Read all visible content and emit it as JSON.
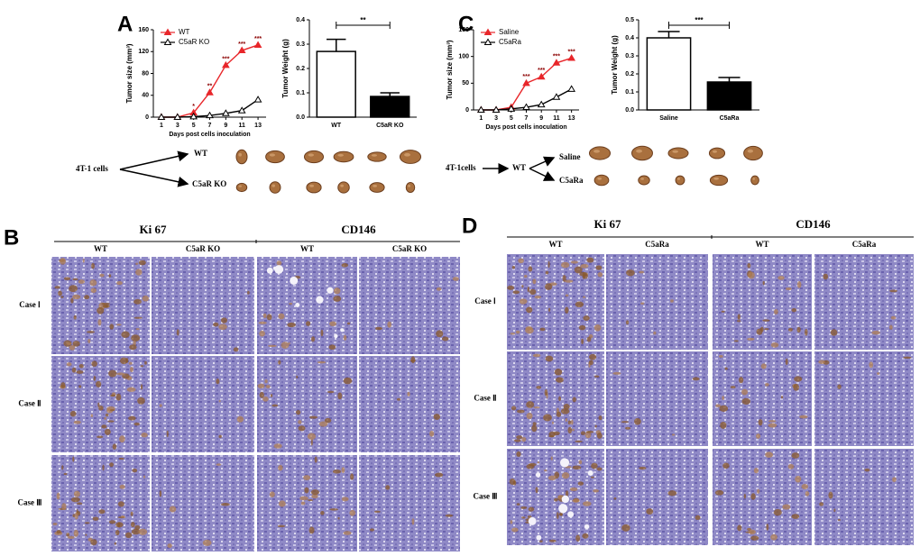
{
  "panels": {
    "a": "A",
    "b": "B",
    "c": "C",
    "d": "D"
  },
  "chart_data": [
    {
      "type": "line",
      "x": [
        1,
        3,
        5,
        7,
        9,
        11,
        13
      ],
      "xlim": [
        0,
        14
      ],
      "xticks": [
        1,
        3,
        5,
        7,
        9,
        11,
        13
      ],
      "ylim": [
        0,
        160
      ],
      "yticks": [
        0,
        40,
        80,
        120,
        160
      ],
      "y_label": "Tumor size (mm³)",
      "x_label": "Days post cells inoculation",
      "series": [
        {
          "name": "WT",
          "color": "#e8262a",
          "values": [
            0,
            0,
            8,
            45,
            95,
            122,
            132
          ]
        },
        {
          "name": "C5aR KO",
          "color": "#000000",
          "values": [
            0,
            0,
            1,
            3,
            7,
            12,
            32
          ]
        }
      ],
      "annotations": [
        {
          "x": 5,
          "label": "*"
        },
        {
          "x": 7,
          "label": "**"
        },
        {
          "x": 9,
          "label": "***"
        },
        {
          "x": 11,
          "label": "***"
        },
        {
          "x": 13,
          "label": "***"
        }
      ]
    },
    {
      "type": "bar",
      "categories": [
        "WT",
        "C5aR KO"
      ],
      "values": [
        0.27,
        0.085
      ],
      "errors": [
        0.05,
        0.015
      ],
      "colors": [
        "#ffffff",
        "#000000"
      ],
      "ylim": [
        0,
        0.4
      ],
      "yticks": [
        {
          "value": 0,
          "label": "0.0"
        },
        0.1,
        0.2,
        0.3,
        0.4
      ],
      "y_label": "Tumor Weight (g)",
      "significance": "**"
    },
    {
      "type": "line",
      "x": [
        1,
        3,
        5,
        7,
        9,
        11,
        13
      ],
      "xlim": [
        0,
        14
      ],
      "xticks": [
        1,
        3,
        5,
        7,
        9,
        11,
        13
      ],
      "ylim": [
        0,
        150
      ],
      "yticks": [
        0,
        50,
        100,
        150
      ],
      "y_label": "Tumor size (mm³)",
      "x_label": "Days post cells inoculation",
      "series": [
        {
          "name": "Saline",
          "color": "#e8262a",
          "values": [
            0,
            0,
            5,
            50,
            62,
            88,
            97
          ]
        },
        {
          "name": "C5aRa",
          "color": "#000000",
          "values": [
            0,
            0,
            2,
            5,
            10,
            24,
            39
          ]
        }
      ],
      "annotations": [
        {
          "x": 7,
          "label": "***"
        },
        {
          "x": 9,
          "label": "***"
        },
        {
          "x": 11,
          "label": "***"
        },
        {
          "x": 13,
          "label": "***"
        }
      ]
    },
    {
      "type": "bar",
      "categories": [
        "Saline",
        "C5aRa"
      ],
      "values": [
        0.4,
        0.155
      ],
      "errors": [
        0.035,
        0.025
      ],
      "colors": [
        "#ffffff",
        "#000000"
      ],
      "ylim": [
        0,
        0.5
      ],
      "yticks": [
        {
          "value": 0,
          "label": "0.0"
        },
        0.1,
        0.2,
        0.3,
        0.4,
        0.5
      ],
      "y_label": "Tumor Weight (g)",
      "significance": "***"
    }
  ],
  "diagrams": [
    {
      "source": "4T-1 cells",
      "branches": [
        "WT",
        "C5aR KO"
      ]
    },
    {
      "source": "4T-1cells",
      "middle": "WT",
      "branches": [
        "Saline",
        "C5aRa"
      ]
    }
  ],
  "histology": [
    {
      "markers": [
        "Ki 67",
        "CD146"
      ],
      "groups": [
        "WT",
        "C5aR KO"
      ],
      "cases": [
        "Case Ⅰ",
        "Case Ⅱ",
        "Case Ⅲ"
      ]
    },
    {
      "markers": [
        "Ki 67",
        "CD146"
      ],
      "groups": [
        "WT",
        "C5aRa"
      ],
      "cases": [
        "Case Ⅰ",
        "Case Ⅱ",
        "Case Ⅲ"
      ]
    }
  ]
}
